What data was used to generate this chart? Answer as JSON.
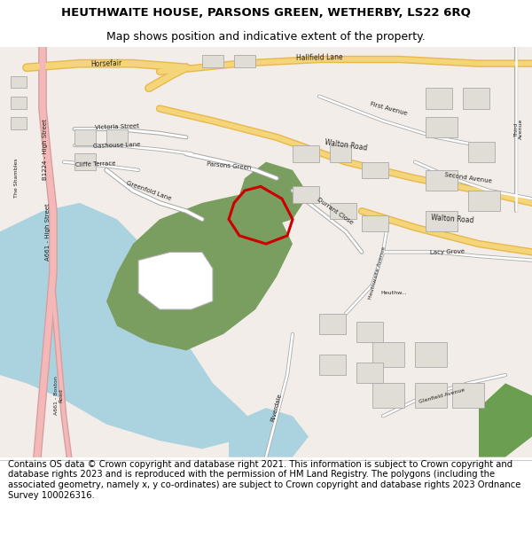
{
  "title_line1": "HEUTHWAITE HOUSE, PARSONS GREEN, WETHERBY, LS22 6RQ",
  "title_line2": "Map shows position and indicative extent of the property.",
  "title_fontsize": 9.5,
  "subtitle_fontsize": 9,
  "footer_text": "Contains OS data © Crown copyright and database right 2021. This information is subject to Crown copyright and database rights 2023 and is reproduced with the permission of HM Land Registry. The polygons (including the associated geometry, namely x, y co-ordinates) are subject to Crown copyright and database rights 2023 Ordnance Survey 100026316.",
  "footer_fontsize": 7.2,
  "fig_width": 6.0,
  "fig_height": 6.25,
  "map_bg_color": "#f2ede8",
  "road_yellow": "#f5d57a",
  "road_yellow_border": "#e8b84b",
  "road_pink": "#f5b8b8",
  "road_pink_border": "#d4a0a0",
  "green_area": "#7a9e5f",
  "water_blue": "#aad3df",
  "red_outline": "#cc0000",
  "building_fill": "#e0dcd6",
  "building_edge": "#aaaaaa",
  "road_white": "#ffffff",
  "road_gray_border": "#aaaaaa"
}
